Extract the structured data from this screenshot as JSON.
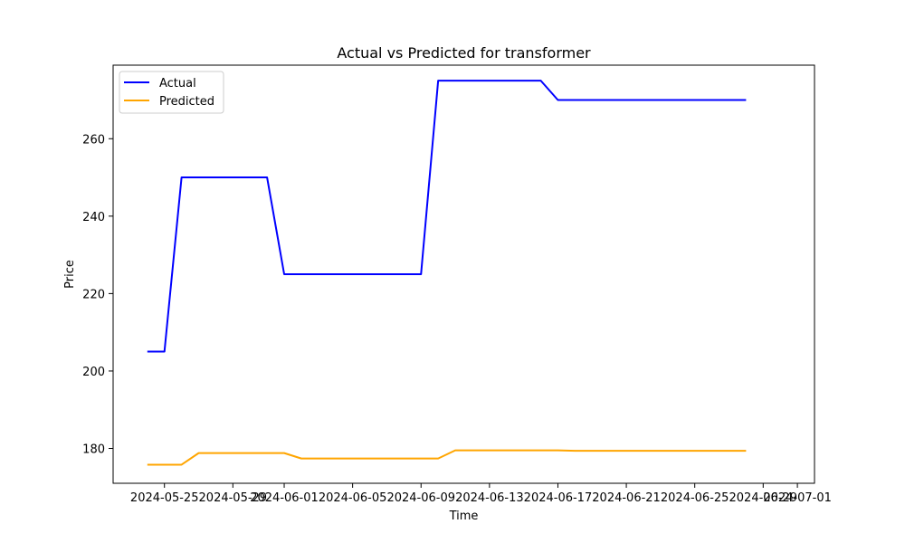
{
  "chart_data": {
    "type": "line",
    "title": "Actual vs Predicted for transformer",
    "xlabel": "Time",
    "ylabel": "Price",
    "x_is_date": true,
    "xlim": [
      "2024-05-22",
      "2024-07-02"
    ],
    "ylim": [
      171,
      279
    ],
    "x_ticks": [
      "2024-05-25",
      "2024-05-29",
      "2024-06-01",
      "2024-06-05",
      "2024-06-09",
      "2024-06-13",
      "2024-06-17",
      "2024-06-21",
      "2024-06-25",
      "2024-06-29",
      "2024-07-01"
    ],
    "y_ticks": [
      180,
      200,
      220,
      240,
      260
    ],
    "grid": false,
    "legend_position": "upper left",
    "series": [
      {
        "name": "Actual",
        "color": "#0000ff",
        "x": [
          "2024-05-24",
          "2024-05-25",
          "2024-05-26",
          "2024-05-31",
          "2024-06-01",
          "2024-06-09",
          "2024-06-10",
          "2024-06-16",
          "2024-06-17",
          "2024-06-28"
        ],
        "y": [
          205,
          205,
          250,
          250,
          225,
          225,
          275,
          275,
          270,
          270
        ]
      },
      {
        "name": "Predicted",
        "color": "#ffa500",
        "x": [
          "2024-05-24",
          "2024-05-26",
          "2024-05-27",
          "2024-06-01",
          "2024-06-02",
          "2024-06-10",
          "2024-06-11",
          "2024-06-17",
          "2024-06-18",
          "2024-06-28"
        ],
        "y": [
          175.8,
          175.8,
          178.8,
          178.8,
          177.4,
          177.4,
          179.5,
          179.5,
          179.4,
          179.4
        ]
      }
    ]
  }
}
